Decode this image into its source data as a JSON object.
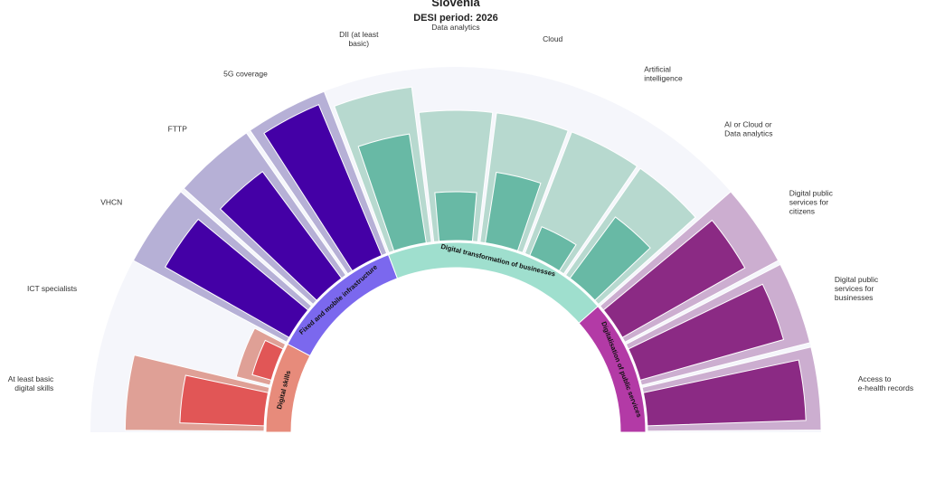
{
  "title": "Slovenia",
  "subtitle": "DESI period: 2026",
  "colors": {
    "track": "#f5f6fb"
  },
  "chart_data": {
    "type": "radial-bar",
    "groups": [
      {
        "name": "Digital skills",
        "color": "#e78b7b",
        "target_color": "#dfa096",
        "value_color": "#e15656",
        "indicators": [
          {
            "label": "At least basic digital skills",
            "target": 0.8,
            "value": 0.5
          },
          {
            "label": "ICT specialists",
            "target": 0.2,
            "value": 0.1
          }
        ]
      },
      {
        "name": "Fixed and mobile infrastructure",
        "color": "#7b68ee",
        "target_color": "#b6b0d6",
        "value_color": "#4400a6",
        "indicators": [
          {
            "label": "VHCN",
            "target": 1.0,
            "value": 0.86
          },
          {
            "label": "FTTP",
            "target": 1.0,
            "value": 0.8
          },
          {
            "label": "5G coverage",
            "target": 1.0,
            "value": 0.99
          }
        ]
      },
      {
        "name": "Digital transformation of businesses",
        "color": "#9fdfce",
        "target_color": "#b7d9cf",
        "value_color": "#68b9a5",
        "indicators": [
          {
            "label": "DII (at least basic)",
            "target": 0.9,
            "value": 0.66
          },
          {
            "label": "Data analytics",
            "target": 0.75,
            "value": 0.28
          },
          {
            "label": "Cloud",
            "target": 0.75,
            "value": 0.42
          },
          {
            "label": "Artificial intelligence",
            "target": 0.75,
            "value": 0.17
          },
          {
            "label": "AI or Cloud or Data analytics",
            "target": 0.75,
            "value": 0.45
          }
        ]
      },
      {
        "name": "Digitalisation of public services",
        "color": "#b33aa6",
        "target_color": "#ccaed0",
        "value_color": "#8b2a84",
        "indicators": [
          {
            "label": "Digital public services for citizens",
            "target": 1.0,
            "value": 0.85
          },
          {
            "label": "Digital public services for businesses",
            "target": 1.0,
            "value": 0.9
          },
          {
            "label": "Access to e-health records",
            "target": 1.0,
            "value": 0.96
          }
        ]
      }
    ]
  }
}
